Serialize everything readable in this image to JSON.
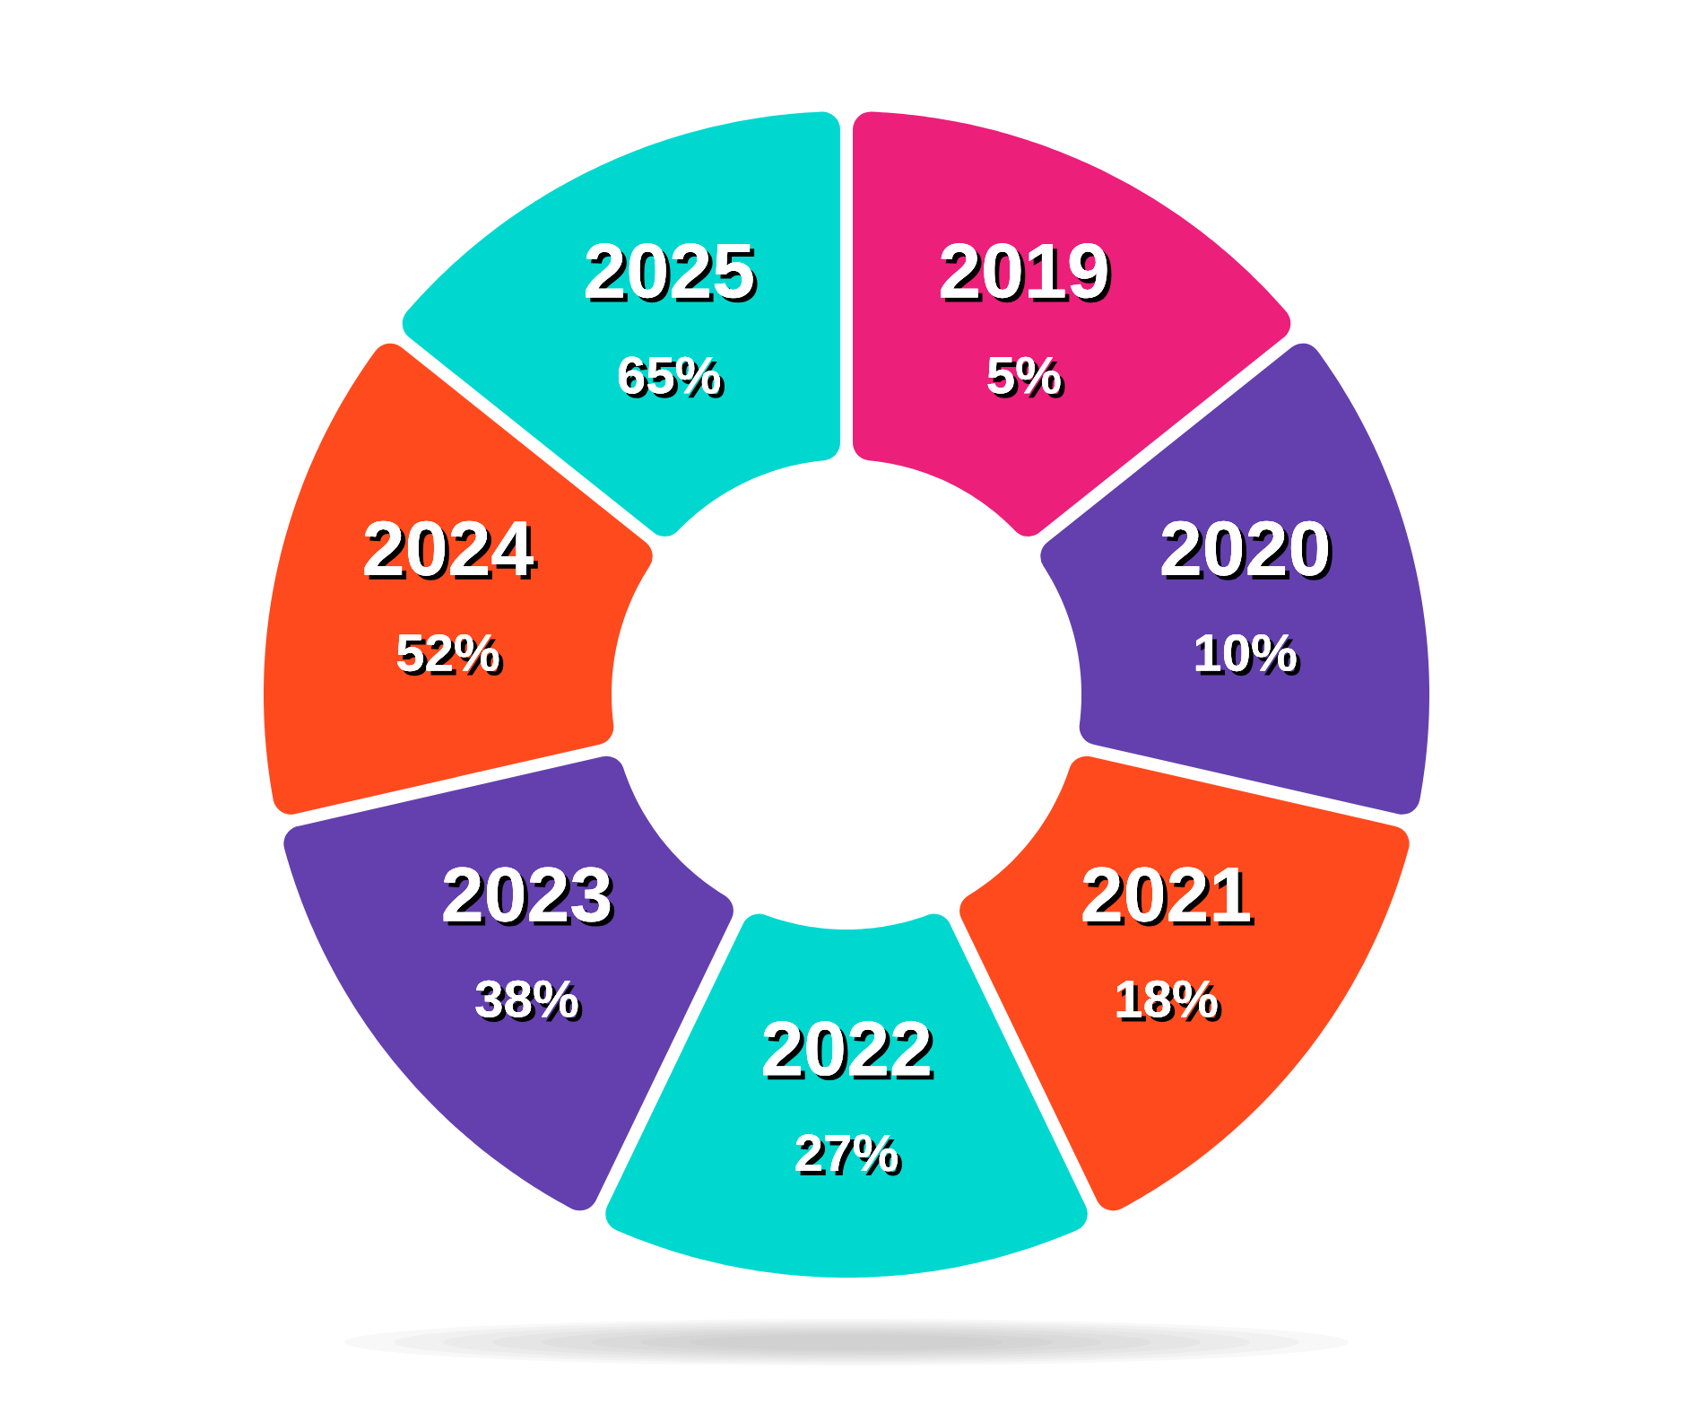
{
  "chart_data": {
    "type": "other",
    "categories": [
      "2019",
      "2020",
      "2021",
      "2022",
      "2023",
      "2024",
      "2025"
    ],
    "values": [
      5,
      10,
      18,
      27,
      38,
      52,
      65
    ],
    "value_labels": [
      "5%",
      "10%",
      "18%",
      "27%",
      "38%",
      "52%",
      "65%"
    ],
    "colors": [
      "#ec1f7a",
      "#6340ae",
      "#ff4a1e",
      "#00d8cf",
      "#6340ae",
      "#ff4a1e",
      "#00d8cf"
    ]
  }
}
